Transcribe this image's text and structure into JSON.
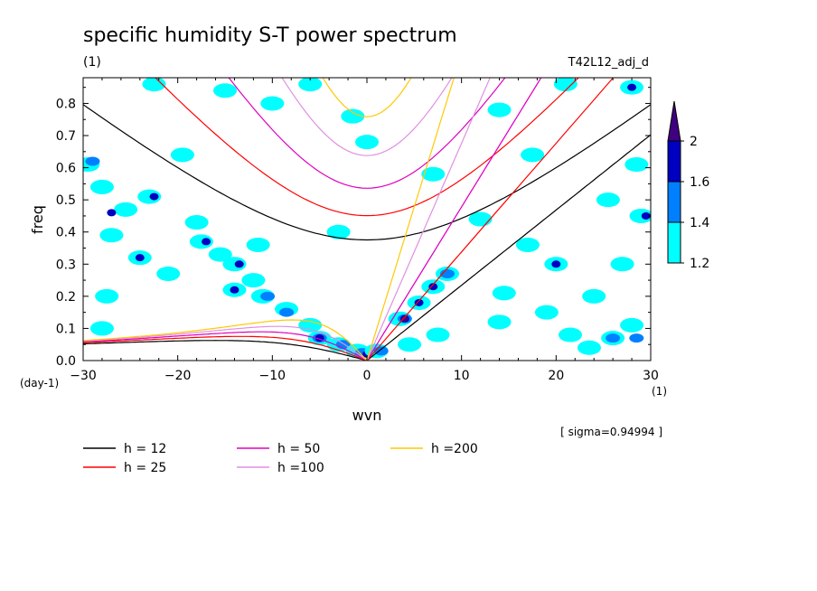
{
  "header": {
    "title": "specific humidity S-T power spectrum",
    "unit": "(1)",
    "run_id": "T42L12_adj_d",
    "sigma_note": "[ sigma=0.94994 ]"
  },
  "chart_data": {
    "type": "heatmap",
    "title": "specific humidity S-T power spectrum",
    "xlabel": "wvn",
    "xunit": "(1)",
    "ylabel": "freq",
    "yunit": "(day-1)",
    "xlim": [
      -30,
      30
    ],
    "ylim": [
      0,
      0.88
    ],
    "xticks": [
      -30,
      -20,
      -10,
      0,
      10,
      20,
      30
    ],
    "yticks": [
      0.0,
      0.1,
      0.2,
      0.3,
      0.4,
      0.5,
      0.6,
      0.7,
      0.8
    ],
    "colorbar": {
      "levels": [
        1.2,
        1.4,
        1.6,
        2
      ],
      "colors": [
        "#00ffff",
        "#0080ff",
        "#0000c0",
        "#400080"
      ]
    },
    "shaded_regions": [
      {
        "level": 1.2,
        "x": -29.5,
        "y": 0.61
      },
      {
        "level": 1.4,
        "x": -29,
        "y": 0.62
      },
      {
        "level": 1.2,
        "x": -28,
        "y": 0.54
      },
      {
        "level": 1.2,
        "x": -25.5,
        "y": 0.47
      },
      {
        "level": 1.6,
        "x": -27,
        "y": 0.46
      },
      {
        "level": 1.2,
        "x": -23,
        "y": 0.51
      },
      {
        "level": 1.6,
        "x": -22.5,
        "y": 0.51
      },
      {
        "level": 1.2,
        "x": -18,
        "y": 0.43
      },
      {
        "level": 1.2,
        "x": -27,
        "y": 0.39
      },
      {
        "level": 1.2,
        "x": -24,
        "y": 0.32
      },
      {
        "level": 1.6,
        "x": -24,
        "y": 0.32
      },
      {
        "level": 1.2,
        "x": -17.5,
        "y": 0.37
      },
      {
        "level": 1.6,
        "x": -17,
        "y": 0.37
      },
      {
        "level": 1.2,
        "x": -15.5,
        "y": 0.33
      },
      {
        "level": 1.2,
        "x": -14,
        "y": 0.3
      },
      {
        "level": 1.6,
        "x": -13.5,
        "y": 0.3
      },
      {
        "level": 1.2,
        "x": -11.5,
        "y": 0.36
      },
      {
        "level": 1.2,
        "x": -12,
        "y": 0.25
      },
      {
        "level": 1.2,
        "x": -14,
        "y": 0.22
      },
      {
        "level": 1.6,
        "x": -14,
        "y": 0.22
      },
      {
        "level": 1.2,
        "x": -11,
        "y": 0.2
      },
      {
        "level": 1.4,
        "x": -10.5,
        "y": 0.2
      },
      {
        "level": 1.2,
        "x": -8.5,
        "y": 0.16
      },
      {
        "level": 1.4,
        "x": -8.5,
        "y": 0.15
      },
      {
        "level": 1.2,
        "x": -6,
        "y": 0.11
      },
      {
        "level": 1.2,
        "x": -5,
        "y": 0.07
      },
      {
        "level": 1.4,
        "x": -5,
        "y": 0.07
      },
      {
        "level": 1.6,
        "x": -5,
        "y": 0.07
      },
      {
        "level": 1.2,
        "x": -3,
        "y": 0.05
      },
      {
        "level": 1.4,
        "x": -2.5,
        "y": 0.05
      },
      {
        "level": 1.2,
        "x": -1,
        "y": 0.03
      },
      {
        "level": 1.4,
        "x": -0.5,
        "y": 0.025
      },
      {
        "level": 1.6,
        "x": 0,
        "y": 0.02
      },
      {
        "level": 1.2,
        "x": 1,
        "y": 0.03
      },
      {
        "level": 1.4,
        "x": 1.5,
        "y": 0.03
      },
      {
        "level": 1.2,
        "x": 3.5,
        "y": 0.13
      },
      {
        "level": 1.4,
        "x": 4,
        "y": 0.13
      },
      {
        "level": 1.6,
        "x": 4,
        "y": 0.13
      },
      {
        "level": 2,
        "x": 4,
        "y": 0.13
      },
      {
        "level": 1.2,
        "x": 5.5,
        "y": 0.18
      },
      {
        "level": 1.6,
        "x": 5.5,
        "y": 0.18
      },
      {
        "level": 1.2,
        "x": 7,
        "y": 0.23
      },
      {
        "level": 1.6,
        "x": 7,
        "y": 0.23
      },
      {
        "level": 1.2,
        "x": 8.5,
        "y": 0.27
      },
      {
        "level": 1.4,
        "x": 8.5,
        "y": 0.27
      },
      {
        "level": 1.2,
        "x": 4.5,
        "y": 0.05
      },
      {
        "level": 1.2,
        "x": 7.5,
        "y": 0.08
      },
      {
        "level": 1.2,
        "x": 12,
        "y": 0.44
      },
      {
        "level": 1.2,
        "x": 14.5,
        "y": 0.21
      },
      {
        "level": 1.2,
        "x": 14,
        "y": 0.12
      },
      {
        "level": 1.2,
        "x": 17,
        "y": 0.36
      },
      {
        "level": 1.2,
        "x": 17.5,
        "y": 0.64
      },
      {
        "level": 1.2,
        "x": 19,
        "y": 0.15
      },
      {
        "level": 1.2,
        "x": 20,
        "y": 0.3
      },
      {
        "level": 1.6,
        "x": 20,
        "y": 0.3
      },
      {
        "level": 1.2,
        "x": 21.5,
        "y": 0.08
      },
      {
        "level": 1.2,
        "x": 23.5,
        "y": 0.04
      },
      {
        "level": 1.2,
        "x": 24,
        "y": 0.2
      },
      {
        "level": 1.2,
        "x": 25.5,
        "y": 0.5
      },
      {
        "level": 1.2,
        "x": 26,
        "y": 0.07
      },
      {
        "level": 1.4,
        "x": 26,
        "y": 0.07
      },
      {
        "level": 1.2,
        "x": 27,
        "y": 0.3
      },
      {
        "level": 1.2,
        "x": 28,
        "y": 0.11
      },
      {
        "level": 1.4,
        "x": 28.5,
        "y": 0.07
      },
      {
        "level": 1.2,
        "x": 29,
        "y": 0.45
      },
      {
        "level": 1.6,
        "x": 29.5,
        "y": 0.45
      },
      {
        "level": 1.2,
        "x": 28.5,
        "y": 0.61
      },
      {
        "level": 1.2,
        "x": 28,
        "y": 0.85
      },
      {
        "level": 1.6,
        "x": 28,
        "y": 0.85
      },
      {
        "level": 1.2,
        "x": -10,
        "y": 0.8
      },
      {
        "level": 1.2,
        "x": -15,
        "y": 0.84
      },
      {
        "level": 1.2,
        "x": -6,
        "y": 0.86
      },
      {
        "level": 1.2,
        "x": 0,
        "y": 0.68
      },
      {
        "level": 1.2,
        "x": -3,
        "y": 0.4
      },
      {
        "level": 1.2,
        "x": -1.5,
        "y": 0.76
      },
      {
        "level": 1.2,
        "x": 7,
        "y": 0.58
      },
      {
        "level": 1.2,
        "x": -21,
        "y": 0.27
      },
      {
        "level": 1.2,
        "x": -28,
        "y": 0.1
      },
      {
        "level": 1.2,
        "x": -27.5,
        "y": 0.2
      },
      {
        "level": 1.2,
        "x": -19.5,
        "y": 0.64
      },
      {
        "level": 1.2,
        "x": -22.5,
        "y": 0.86
      },
      {
        "level": 1.2,
        "x": 14,
        "y": 0.78
      },
      {
        "level": 1.2,
        "x": 21,
        "y": 0.86
      }
    ],
    "dispersion_curves": [
      {
        "name": "h = 12",
        "h": 12,
        "color": "#000000"
      },
      {
        "name": "h = 25",
        "h": 25,
        "color": "#ff0000"
      },
      {
        "name": "h = 50",
        "h": 50,
        "color": "#e000c0"
      },
      {
        "name": "h =100",
        "h": 100,
        "color": "#e090e0"
      },
      {
        "name": "h =200",
        "h": 200,
        "color": "#ffc800"
      }
    ],
    "legend_placement": "bottom-left"
  }
}
